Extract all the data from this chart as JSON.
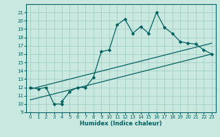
{
  "title": "",
  "xlabel": "Humidex (Indice chaleur)",
  "bg_color": "#c8e8e0",
  "grid_color": "#a0c8be",
  "line_color": "#006060",
  "xlim": [
    -0.5,
    23.5
  ],
  "ylim": [
    9,
    22
  ],
  "xticks": [
    0,
    1,
    2,
    3,
    4,
    5,
    6,
    7,
    8,
    9,
    10,
    11,
    12,
    13,
    14,
    15,
    16,
    17,
    18,
    19,
    20,
    21,
    22,
    23
  ],
  "yticks": [
    9,
    10,
    11,
    12,
    13,
    14,
    15,
    16,
    17,
    18,
    19,
    20,
    21
  ],
  "main_x": [
    0,
    1,
    2,
    3,
    4,
    4,
    5,
    6,
    7,
    8,
    9,
    10,
    11,
    12,
    13,
    14,
    15,
    16,
    17,
    18,
    19,
    20,
    21,
    22,
    23
  ],
  "main_y": [
    12,
    11.8,
    12,
    10,
    10,
    10.3,
    11.5,
    12,
    12,
    13.2,
    16.3,
    16.5,
    19.5,
    20.2,
    18.5,
    19.3,
    18.5,
    21,
    19.2,
    18.5,
    17.5,
    17.3,
    17.2,
    16.5,
    16.0
  ],
  "line1_x": [
    0,
    23
  ],
  "line1_y": [
    11.8,
    17.3
  ],
  "line2_x": [
    0,
    23
  ],
  "line2_y": [
    10.5,
    16.0
  ],
  "marker_size": 2.5,
  "line_width": 0.9
}
